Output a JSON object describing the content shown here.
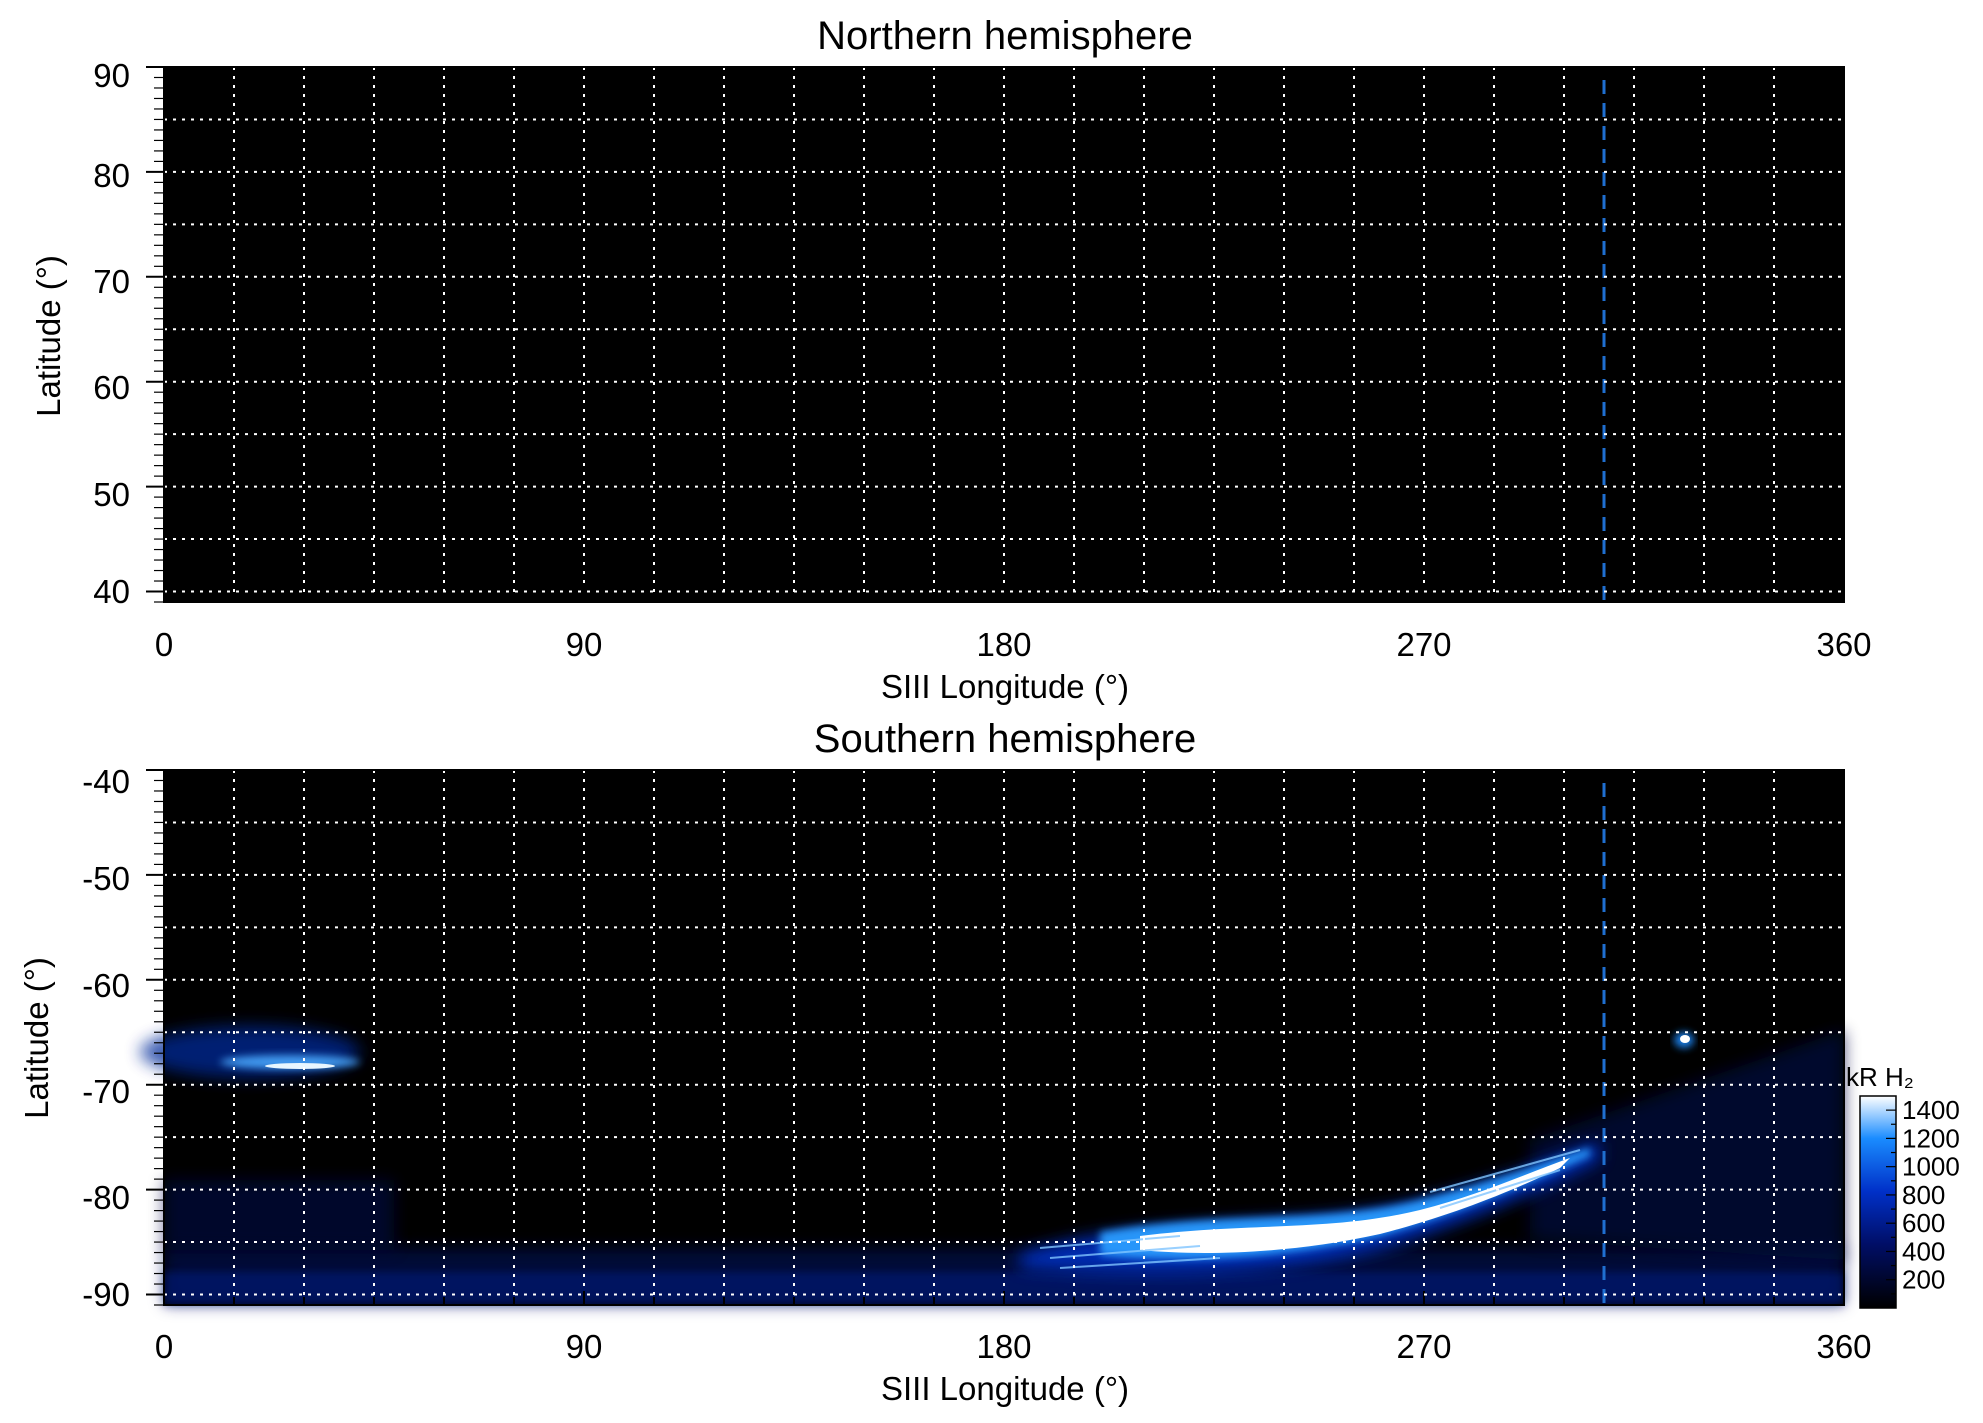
{
  "chart_data": [
    {
      "type": "heatmap",
      "title": "Northern hemisphere",
      "xlabel": "SIII Longitude (°)",
      "ylabel": "Latitude (°)",
      "xlim": [
        0,
        360
      ],
      "ylim": [
        39,
        90
      ],
      "xticks": [
        "0",
        "90",
        "180",
        "270",
        "360"
      ],
      "yticks": [
        "40",
        "50",
        "60",
        "70",
        "80",
        "90"
      ],
      "grid": true,
      "grid_style": "white dotted",
      "grid_x_step": 15,
      "grid_y_step": 5,
      "background_color": "#000000",
      "marker_line": {
        "x": 309,
        "style": "dashed",
        "color": "#1f6fd1"
      },
      "emission_features": []
    },
    {
      "type": "heatmap",
      "title": "Southern hemisphere",
      "xlabel": "SIII Longitude (°)",
      "ylabel": "Latitude (°)",
      "xlim": [
        0,
        360
      ],
      "ylim": [
        -91,
        -40
      ],
      "xticks": [
        "0",
        "90",
        "180",
        "270",
        "360"
      ],
      "yticks": [
        "-40",
        "-50",
        "-60",
        "-70",
        "-80",
        "-90"
      ],
      "grid": true,
      "grid_style": "white dotted",
      "grid_x_step": 15,
      "grid_y_step": 5,
      "background_color": "#000000",
      "marker_line": {
        "x": 309,
        "style": "dashed",
        "color": "#1f6fd1"
      },
      "emission_features": [
        {
          "name": "main auroral arc",
          "lon_range": [
            190,
            308
          ],
          "lat_range": [
            -87,
            -76
          ],
          "peak_kR": 1400
        },
        {
          "name": "patch",
          "lon_range": [
            0,
            43
          ],
          "lat_range": [
            -70,
            -65
          ],
          "peak_kR": 900
        },
        {
          "name": "spot",
          "lon_range": [
            324,
            328
          ],
          "lat_range": [
            -66,
            -65
          ],
          "peak_kR": 1000
        },
        {
          "name": "faint polar band",
          "lon_range": [
            0,
            360
          ],
          "lat_range": [
            -91,
            -85
          ],
          "peak_kR": 400
        }
      ],
      "colorbar": {
        "title": "kR H₂",
        "ticks": [
          "200",
          "400",
          "600",
          "800",
          "1000",
          "1200",
          "1400"
        ],
        "range": [
          0,
          1500
        ],
        "colors": [
          "#000000",
          "#000e66",
          "#0030c8",
          "#1a8cff",
          "#ffffff"
        ]
      }
    }
  ]
}
